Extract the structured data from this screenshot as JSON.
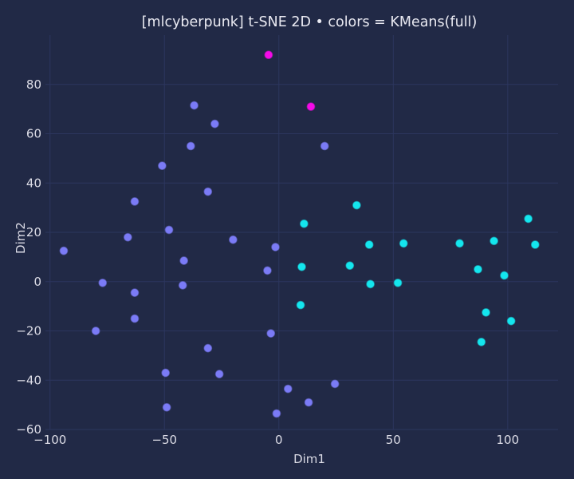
{
  "chart_data": {
    "type": "scatter",
    "title": "[mlcyberpunk] t-SNE 2D • colors = KMeans(full)",
    "xlabel": "Dim1",
    "ylabel": "Dim2",
    "xlim": [
      -102,
      122
    ],
    "ylim": [
      -60,
      100
    ],
    "xticks": [
      -100,
      -50,
      0,
      50,
      100
    ],
    "yticks": [
      -60,
      -40,
      -20,
      0,
      20,
      40,
      60,
      80
    ],
    "xtick_labels": [
      "−100",
      "−50",
      "0",
      "50",
      "100"
    ],
    "ytick_labels": [
      "−60",
      "−40",
      "−20",
      "0",
      "20",
      "40",
      "60",
      "80"
    ],
    "grid": true,
    "legend": "none",
    "colors": {
      "cluster_0": "#7b7bf6",
      "cluster_1": "#14e6ee",
      "cluster_2": "#f50ae8"
    },
    "series": [
      {
        "cluster": "0",
        "color": "#7b7bf6",
        "points": [
          [
            -37,
            71.5
          ],
          [
            -28,
            64
          ],
          [
            -38.5,
            55
          ],
          [
            -51,
            47
          ],
          [
            -63,
            32.5
          ],
          [
            -31,
            36.5
          ],
          [
            -66,
            18
          ],
          [
            -48,
            21
          ],
          [
            -94,
            12.5
          ],
          [
            -41.5,
            8.5
          ],
          [
            -20,
            17
          ],
          [
            -77,
            -0.5
          ],
          [
            -63,
            -4.5
          ],
          [
            -42,
            -1.5
          ],
          [
            -80,
            -20
          ],
          [
            -63,
            -15
          ],
          [
            -31,
            -27
          ],
          [
            -49.5,
            -37
          ],
          [
            -26,
            -37.5
          ],
          [
            -49,
            -51
          ],
          [
            -5,
            4.5
          ],
          [
            -1.5,
            14
          ],
          [
            -3.5,
            -21
          ],
          [
            4,
            -43.5
          ],
          [
            -1,
            -53.5
          ],
          [
            13,
            -49
          ],
          [
            24.5,
            -41.5
          ],
          [
            20,
            55
          ]
        ]
      },
      {
        "cluster": "1",
        "color": "#14e6ee",
        "points": [
          [
            11,
            23.5
          ],
          [
            34,
            31
          ],
          [
            39.5,
            15
          ],
          [
            54.5,
            15.5
          ],
          [
            10,
            6
          ],
          [
            31,
            6.5
          ],
          [
            40,
            -1
          ],
          [
            52,
            -0.5
          ],
          [
            9.5,
            -9.5
          ],
          [
            79,
            15.5
          ],
          [
            94,
            16.5
          ],
          [
            109,
            25.5
          ],
          [
            112,
            15
          ],
          [
            87,
            5
          ],
          [
            98.5,
            2.5
          ],
          [
            90.5,
            -12.5
          ],
          [
            101.5,
            -16
          ],
          [
            88.5,
            -24.5
          ]
        ]
      },
      {
        "cluster": "2",
        "color": "#f50ae8",
        "points": [
          [
            -4.5,
            92
          ],
          [
            14,
            71
          ]
        ]
      }
    ]
  }
}
